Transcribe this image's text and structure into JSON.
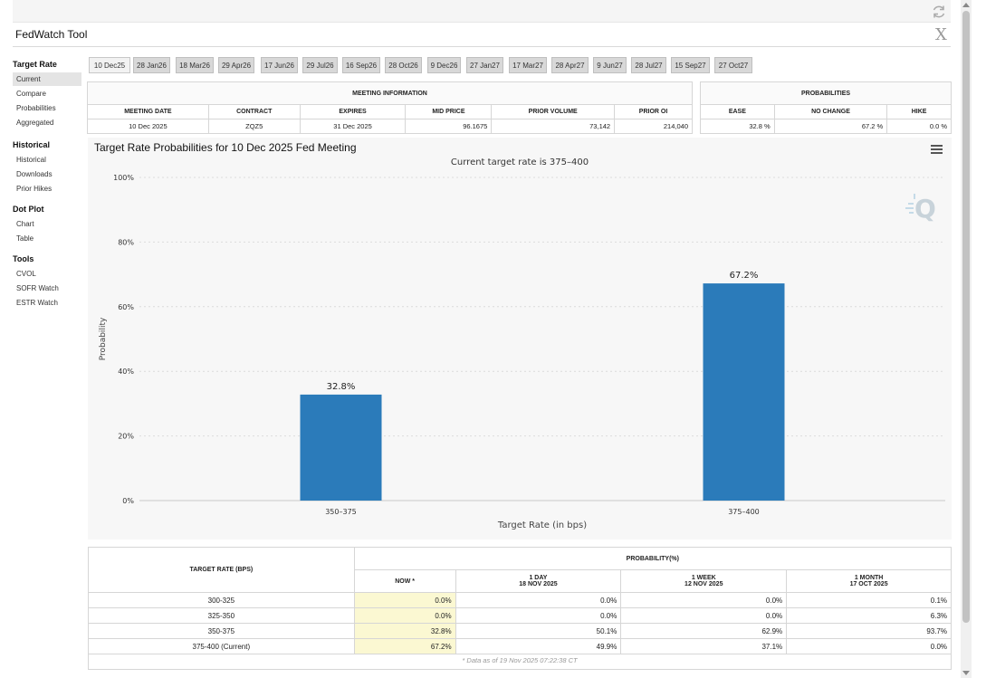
{
  "app": {
    "title": "FedWatch Tool",
    "close_label": "X"
  },
  "sidebar": {
    "sections": [
      {
        "title": "Target Rate",
        "items": [
          "Current",
          "Compare",
          "Probabilities",
          "Aggregated"
        ]
      },
      {
        "title": "Historical",
        "items": [
          "Historical",
          "Downloads",
          "Prior Hikes"
        ]
      },
      {
        "title": "Dot Plot",
        "items": [
          "Chart",
          "Table"
        ]
      },
      {
        "title": "Tools",
        "items": [
          "CVOL",
          "SOFR Watch",
          "ESTR Watch"
        ]
      }
    ],
    "active": "Current"
  },
  "tabs": [
    "10 Dec25",
    "28 Jan26",
    "18 Mar26",
    "29 Apr26",
    "17 Jun26",
    "29 Jul26",
    "16 Sep26",
    "28 Oct26",
    "9 Dec26",
    "27 Jan27",
    "17 Mar27",
    "28 Apr27",
    "9 Jun27",
    "28 Jul27",
    "15 Sep27",
    "27 Oct27"
  ],
  "meeting_info": {
    "header": "MEETING INFORMATION",
    "columns": [
      "MEETING DATE",
      "CONTRACT",
      "EXPIRES",
      "MID PRICE",
      "PRIOR VOLUME",
      "PRIOR OI"
    ],
    "row": [
      "10 Dec 2025",
      "ZQZ5",
      "31 Dec 2025",
      "96.1675",
      "73,142",
      "214,040"
    ]
  },
  "probabilities": {
    "header": "PROBABILITIES",
    "columns": [
      "EASE",
      "NO CHANGE",
      "HIKE"
    ],
    "row": [
      "32.8 %",
      "67.2 %",
      "0.0 %"
    ]
  },
  "chart": {
    "title": "Target Rate Probabilities for 10 Dec 2025 Fed Meeting",
    "subtitle": "Current target rate is 375–400"
  },
  "chart_data": {
    "type": "bar",
    "categories": [
      "350–375",
      "375–400"
    ],
    "values": [
      32.8,
      67.2
    ],
    "data_labels": [
      "32.8%",
      "67.2%"
    ],
    "xlabel": "Target Rate (in bps)",
    "ylabel": "Probability",
    "ylim": [
      0,
      100
    ],
    "yticks": [
      "0%",
      "20%",
      "40%",
      "60%",
      "80%",
      "100%"
    ],
    "ytick_values": [
      0,
      20,
      40,
      60,
      80,
      100
    ],
    "grid": true,
    "bar_color": "#2b7bba"
  },
  "prob_table": {
    "col_target": "TARGET RATE (BPS)",
    "group_header": "PROBABILITY(%)",
    "cols": [
      {
        "l1": "NOW *",
        "l2": ""
      },
      {
        "l1": "1 DAY",
        "l2": "18 NOV 2025"
      },
      {
        "l1": "1 WEEK",
        "l2": "12 NOV 2025"
      },
      {
        "l1": "1 MONTH",
        "l2": "17 OCT 2025"
      }
    ],
    "rows": [
      [
        "300-325",
        "0.0%",
        "0.0%",
        "0.0%",
        "0.1%"
      ],
      [
        "325-350",
        "0.0%",
        "0.0%",
        "0.0%",
        "6.3%"
      ],
      [
        "350-375",
        "32.8%",
        "50.1%",
        "62.9%",
        "93.7%"
      ],
      [
        "375-400 (Current)",
        "67.2%",
        "49.9%",
        "37.1%",
        "0.0%"
      ]
    ],
    "footnote": "* Data as of 19 Nov 2025 07:22:38 CT"
  }
}
